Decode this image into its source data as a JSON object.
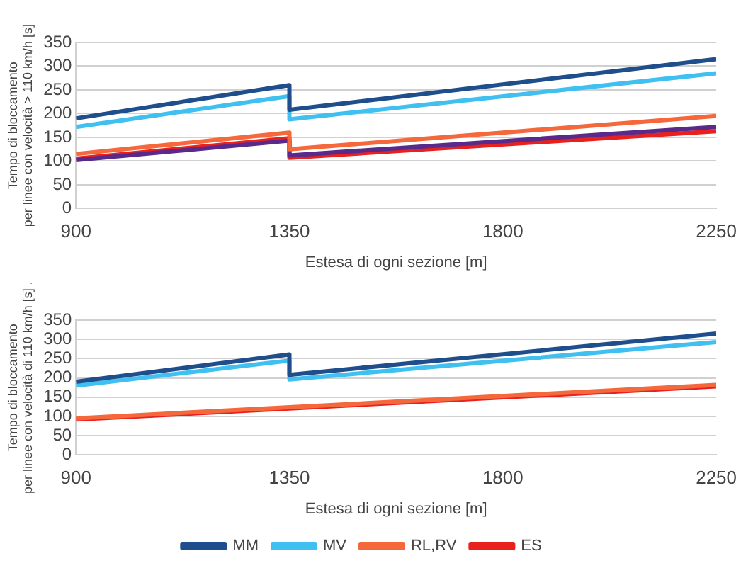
{
  "chart_data": [
    {
      "type": "line",
      "xlabel": "Estesa di ogni sezione [m]",
      "ylabel": "Tempo di bloccamento\nper linee con velocità > 110 km/h [s]",
      "xlim": [
        900,
        2250
      ],
      "xticks": [
        900,
        1350,
        1800,
        2250
      ],
      "ylim": [
        0,
        350
      ],
      "yticks": [
        0,
        50,
        100,
        150,
        200,
        250,
        300,
        350
      ],
      "grid": "y",
      "legend": false,
      "marker": "none",
      "series": [
        {
          "color": "#1f4e8c",
          "x": [
            900,
            1350,
            1350,
            2250
          ],
          "values": [
            190,
            260,
            208,
            315
          ]
        },
        {
          "color": "#3fc0f0",
          "x": [
            900,
            1350,
            1350,
            2250
          ],
          "values": [
            172,
            237,
            188,
            285
          ]
        },
        {
          "color": "#f4683c",
          "x": [
            900,
            1350,
            1350,
            2250
          ],
          "values": [
            115,
            160,
            125,
            195
          ]
        },
        {
          "color": "#5a2a8a",
          "x": [
            900,
            1350,
            1350,
            2250
          ],
          "values": [
            102,
            143,
            112,
            172
          ]
        },
        {
          "color": "#e8211e",
          "x": [
            900,
            1350,
            1350,
            2250
          ],
          "values": [
            105,
            148,
            107,
            163
          ]
        }
      ]
    },
    {
      "type": "line",
      "xlabel": "Estesa di ogni sezione [m]",
      "ylabel": "Tempo di bloccamento\nper linee con velocità di 110 km/h [s] .",
      "xlim": [
        900,
        2250
      ],
      "xticks": [
        900,
        1350,
        1800,
        2250
      ],
      "ylim": [
        0,
        350
      ],
      "yticks": [
        0,
        50,
        100,
        150,
        200,
        250,
        300,
        350
      ],
      "grid": "y",
      "legend": "bottom",
      "marker": "none",
      "series": [
        {
          "name": "MM",
          "color": "#1f4e8c",
          "x": [
            900,
            1350,
            1350,
            2250
          ],
          "values": [
            190,
            261,
            208,
            315
          ]
        },
        {
          "name": "MV",
          "color": "#3fc0f0",
          "x": [
            900,
            1350,
            1350,
            2250
          ],
          "values": [
            180,
            245,
            196,
            293
          ]
        },
        {
          "name": "RL,RV",
          "color": "#f4683c",
          "x": [
            900,
            2250
          ],
          "values": [
            95,
            182
          ]
        },
        {
          "name": "ES",
          "color": "#e8211e",
          "x": [
            900,
            2250
          ],
          "values": [
            92,
            178
          ]
        }
      ]
    }
  ]
}
